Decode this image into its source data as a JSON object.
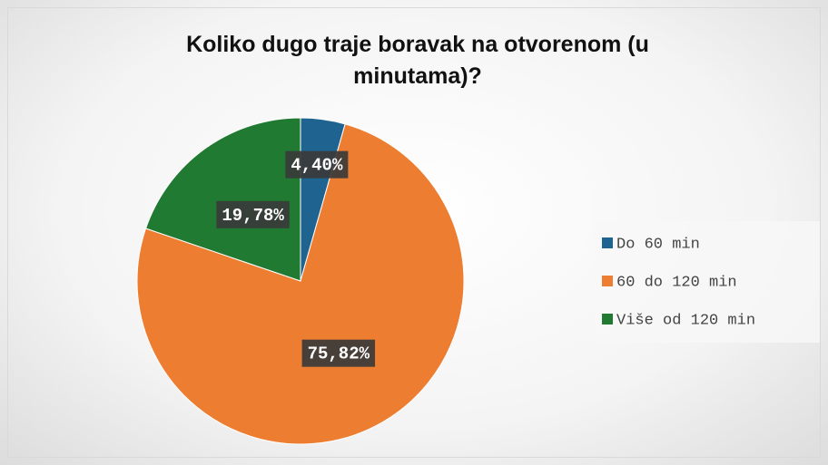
{
  "chart_data": {
    "type": "pie",
    "title": "Koliko dugo traje boravak na otvorenom (u minutama)?",
    "categories": [
      "Do 60 min",
      "60 do 120 min",
      "Više od 120 min"
    ],
    "values": [
      4.4,
      75.82,
      19.78
    ],
    "value_labels": [
      "4,40%",
      "75,82%",
      "19,78%"
    ],
    "colors": [
      "#1f6391",
      "#ed7d31",
      "#217a32"
    ],
    "legend": "right"
  }
}
